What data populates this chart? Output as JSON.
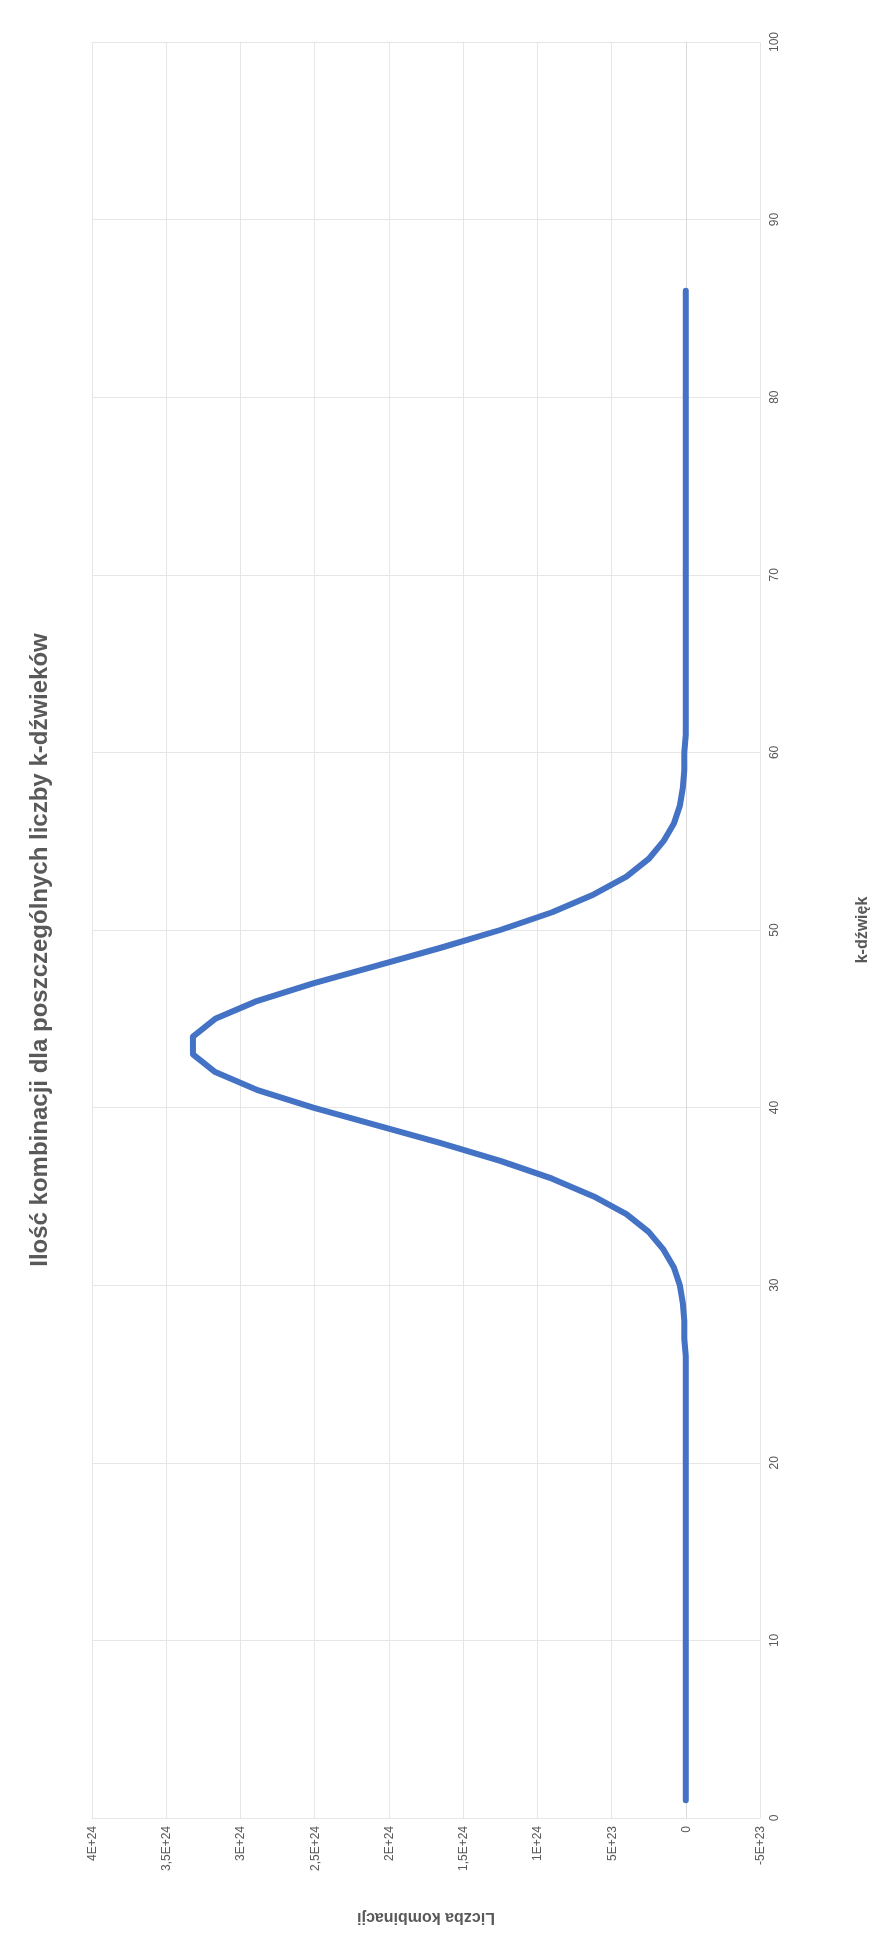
{
  "chart_data": {
    "type": "line",
    "title": "Ilość kombinacji dla poszczególnych liczby k-dźwieków",
    "xlabel": "Liczba kombinacji",
    "ylabel": "k-dźwięk",
    "x": [
      0,
      0,
      0,
      0,
      0,
      0,
      0,
      0,
      0,
      0,
      0,
      0,
      0,
      0,
      0,
      0,
      0,
      0,
      0,
      0,
      0,
      0,
      0,
      0,
      0,
      0,
      1e+22,
      1e+22,
      2e+22,
      4e+22,
      8e+22,
      1.5e+23,
      2.5e+23,
      4e+23,
      6.2e+23,
      9e+23,
      1.25e+24,
      1.65e+24,
      2.08e+24,
      2.51e+24,
      2.89e+24,
      3.17e+24,
      3.32e+24,
      3.32e+24,
      3.17e+24,
      2.89e+24,
      2.51e+24,
      2.08e+24,
      1.65e+24,
      1.25e+24,
      9e+23,
      6.2e+23,
      4e+23,
      2.5e+23,
      1.5e+23,
      8e+22,
      4e+22,
      2e+22,
      1e+22,
      1e+22,
      0,
      0,
      0,
      0,
      0,
      0,
      0,
      0,
      0,
      0,
      0,
      0,
      0,
      0,
      0,
      0,
      0,
      0,
      0,
      0,
      0,
      0,
      0,
      0,
      0,
      0
    ],
    "values": [
      1,
      2,
      3,
      4,
      5,
      6,
      7,
      8,
      9,
      10,
      11,
      12,
      13,
      14,
      15,
      16,
      17,
      18,
      19,
      20,
      21,
      22,
      23,
      24,
      25,
      26,
      27,
      28,
      29,
      30,
      31,
      32,
      33,
      34,
      35,
      36,
      37,
      38,
      39,
      40,
      41,
      42,
      43,
      44,
      45,
      46,
      47,
      48,
      49,
      50,
      51,
      52,
      53,
      54,
      55,
      56,
      57,
      58,
      59,
      60,
      61,
      62,
      63,
      64,
      65,
      66,
      67,
      68,
      69,
      70,
      71,
      72,
      73,
      74,
      75,
      76,
      77,
      78,
      79,
      80,
      81,
      82,
      83,
      84,
      85,
      86
    ],
    "color": "#4472c4",
    "marker": "none",
    "line_style": "solid",
    "grid": true,
    "xlim": [
      4e+24,
      -5e+23
    ],
    "xticks": [
      {
        "value": 4e+24,
        "label": "4E+24"
      },
      {
        "value": 3.5e+24,
        "label": "3,5E+24"
      },
      {
        "value": 3e+24,
        "label": "3E+24"
      },
      {
        "value": 2.5e+24,
        "label": "2,5E+24"
      },
      {
        "value": 2e+24,
        "label": "2E+24"
      },
      {
        "value": 1.5e+24,
        "label": "1,5E+24"
      },
      {
        "value": 1e+24,
        "label": "1E+24"
      },
      {
        "value": 5e+23,
        "label": "5E+23"
      },
      0,
      {
        "value": -5e+23,
        "label": "-5E+23"
      }
    ],
    "ylim": [
      0,
      100
    ],
    "yticks": [
      0,
      10,
      20,
      30,
      40,
      50,
      60,
      70,
      80,
      90,
      100
    ]
  }
}
